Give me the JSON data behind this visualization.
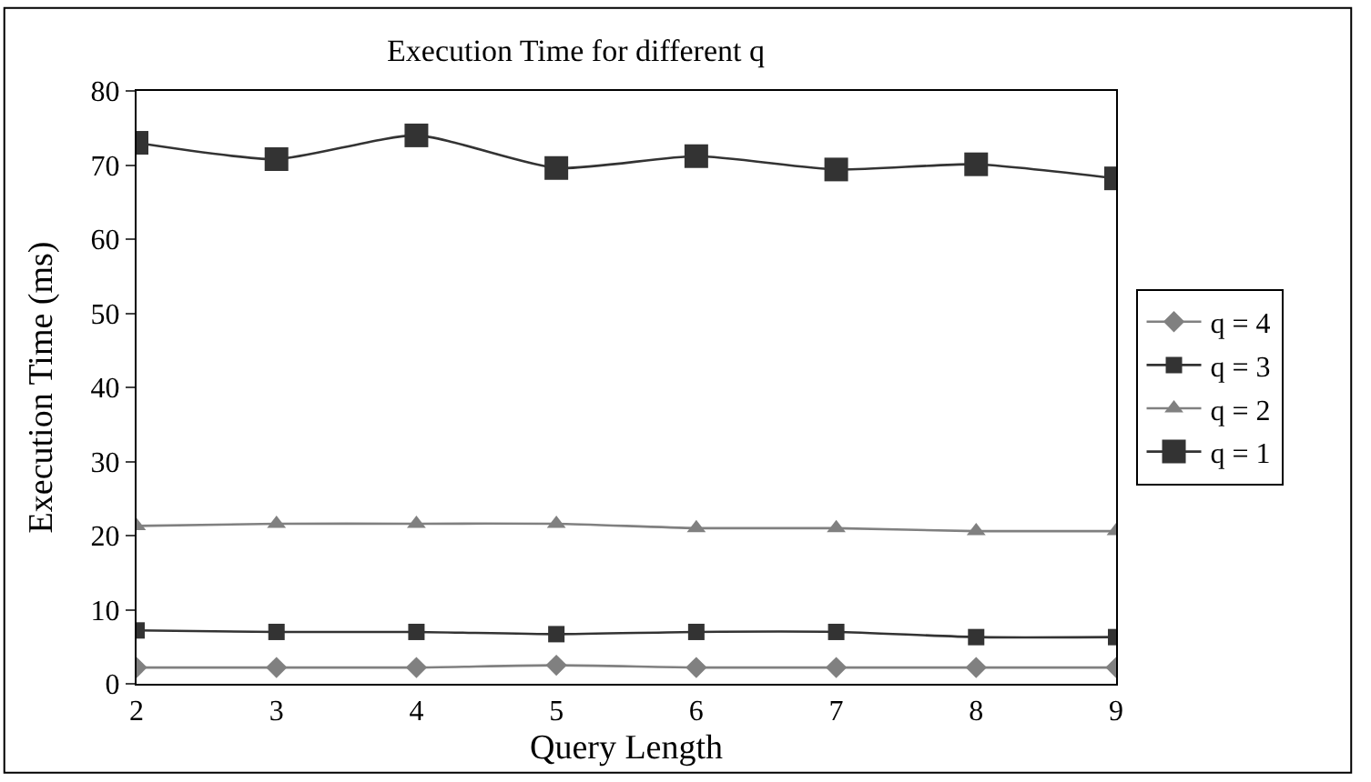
{
  "chart_data": {
    "type": "line",
    "title": "Execution Time for different q",
    "xlabel": "Query Length",
    "ylabel": "Execution Time (ms)",
    "x": [
      2,
      3,
      4,
      5,
      6,
      7,
      8,
      9
    ],
    "series": [
      {
        "name": "q = 4",
        "color": "#808080",
        "marker": "diamond",
        "values": [
          2.2,
          2.2,
          2.2,
          2.5,
          2.2,
          2.2,
          2.2,
          2.2
        ]
      },
      {
        "name": "q = 3",
        "color": "#333333",
        "marker": "square",
        "values": [
          7.2,
          7.0,
          7.0,
          6.7,
          7.0,
          7.0,
          6.3,
          6.3
        ]
      },
      {
        "name": "q = 2",
        "color": "#808080",
        "marker": "triangle",
        "values": [
          21.3,
          21.6,
          21.6,
          21.6,
          21.0,
          21.0,
          20.6,
          20.6
        ]
      },
      {
        "name": "q = 1",
        "color": "#333333",
        "marker": "square",
        "values": [
          73.0,
          70.8,
          74.0,
          69.6,
          71.2,
          69.4,
          70.1,
          68.2
        ]
      }
    ],
    "xlim": [
      2,
      9
    ],
    "xticks": [
      2,
      3,
      4,
      5,
      6,
      7,
      8,
      9
    ],
    "ylim": [
      0,
      80
    ],
    "yticks": [
      0,
      10,
      20,
      30,
      40,
      50,
      60,
      70,
      80
    ],
    "legend": "right",
    "line_style": "solid"
  }
}
